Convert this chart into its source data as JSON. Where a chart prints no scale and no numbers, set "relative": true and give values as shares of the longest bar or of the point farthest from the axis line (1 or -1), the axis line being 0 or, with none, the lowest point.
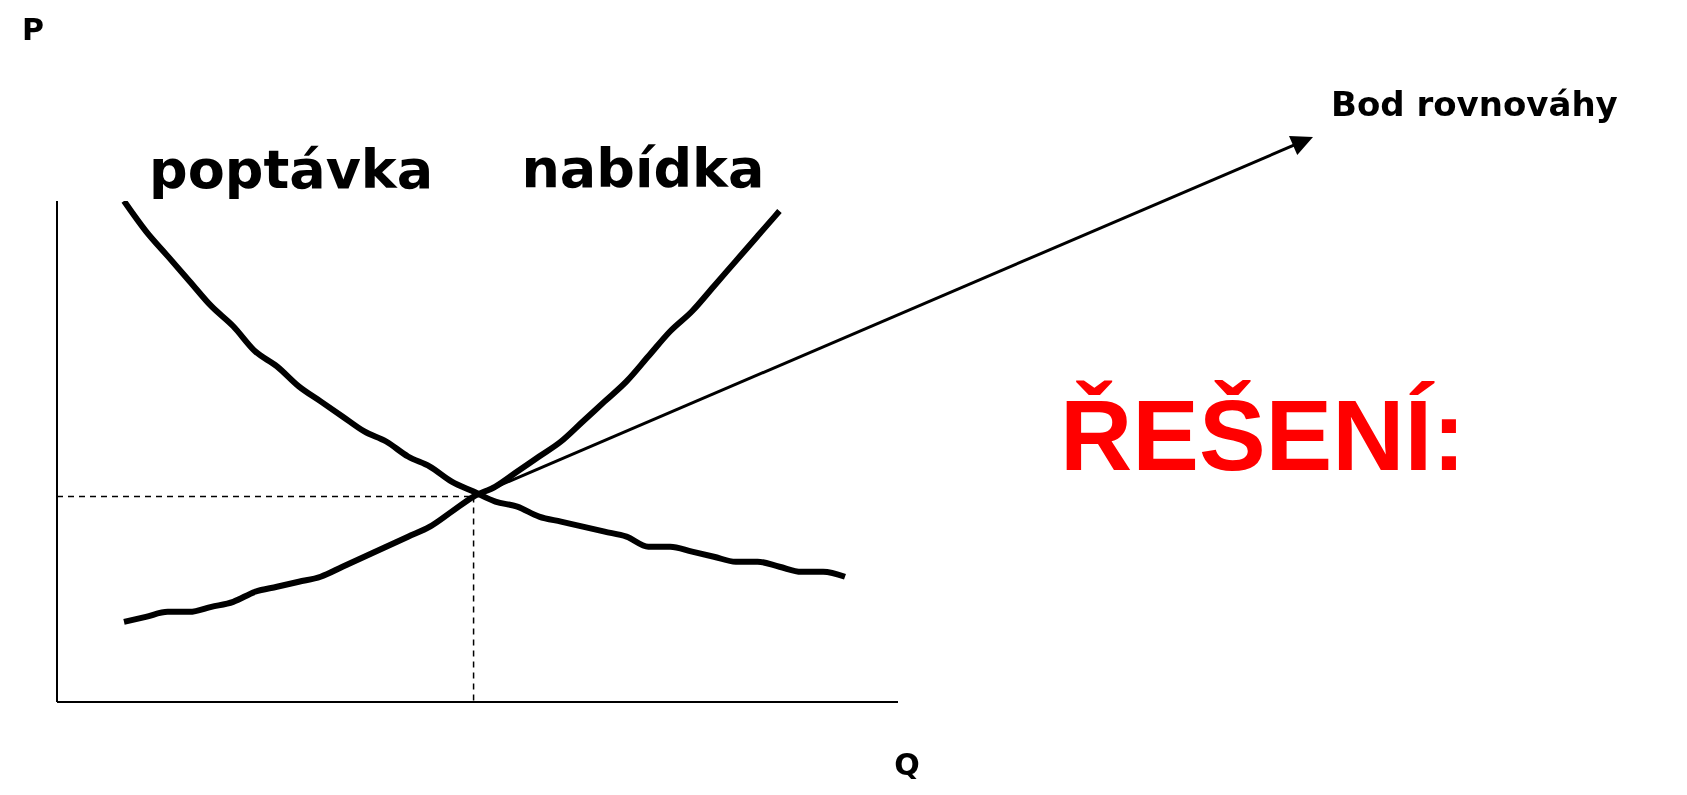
{
  "chart_data": {
    "type": "line",
    "relative": true,
    "xlabel": "Q",
    "categories": [
      null,
      null,
      null,
      null,
      null,
      null,
      null,
      null,
      null,
      null,
      null,
      null,
      null,
      null,
      null,
      null,
      null,
      null,
      null,
      null,
      null,
      null,
      null,
      null,
      null,
      null,
      null,
      null,
      null,
      null,
      null,
      null,
      null,
      null
    ],
    "series": [
      {
        "name": "poptávka",
        "color": "#000000",
        "values": [
          1.0,
          0.94,
          0.89,
          0.84,
          0.79,
          0.75,
          0.7,
          0.67,
          0.63,
          0.6,
          0.57,
          0.54,
          0.52,
          0.49,
          0.47,
          0.44,
          0.42,
          0.4,
          0.39,
          0.37,
          0.36,
          0.35,
          0.34,
          0.33,
          0.31,
          0.31,
          0.3,
          0.29,
          0.28,
          0.28,
          0.27,
          0.26,
          0.26,
          0.25
        ]
      },
      {
        "name": "nabídka",
        "color": "#000000",
        "values": [
          0.16,
          0.17,
          0.18,
          0.18,
          0.19,
          0.2,
          0.22,
          0.23,
          0.24,
          0.25,
          0.27,
          0.29,
          0.31,
          0.33,
          0.35,
          0.38,
          0.41,
          0.43,
          0.46,
          0.49,
          0.52,
          0.56,
          0.6,
          0.64,
          0.69,
          0.74,
          0.78,
          0.83,
          0.88,
          0.93,
          0.98,
          null,
          null,
          null
        ]
      }
    ],
    "annotations": [
      "P",
      "Bod rovnováhy",
      "ŘEŠENÍ:"
    ],
    "ref_lines": [
      {
        "axis": "y",
        "value": 0.41,
        "line_style": "dashed",
        "color": "#000000"
      }
    ],
    "marker": "none",
    "line_style": "solid"
  }
}
